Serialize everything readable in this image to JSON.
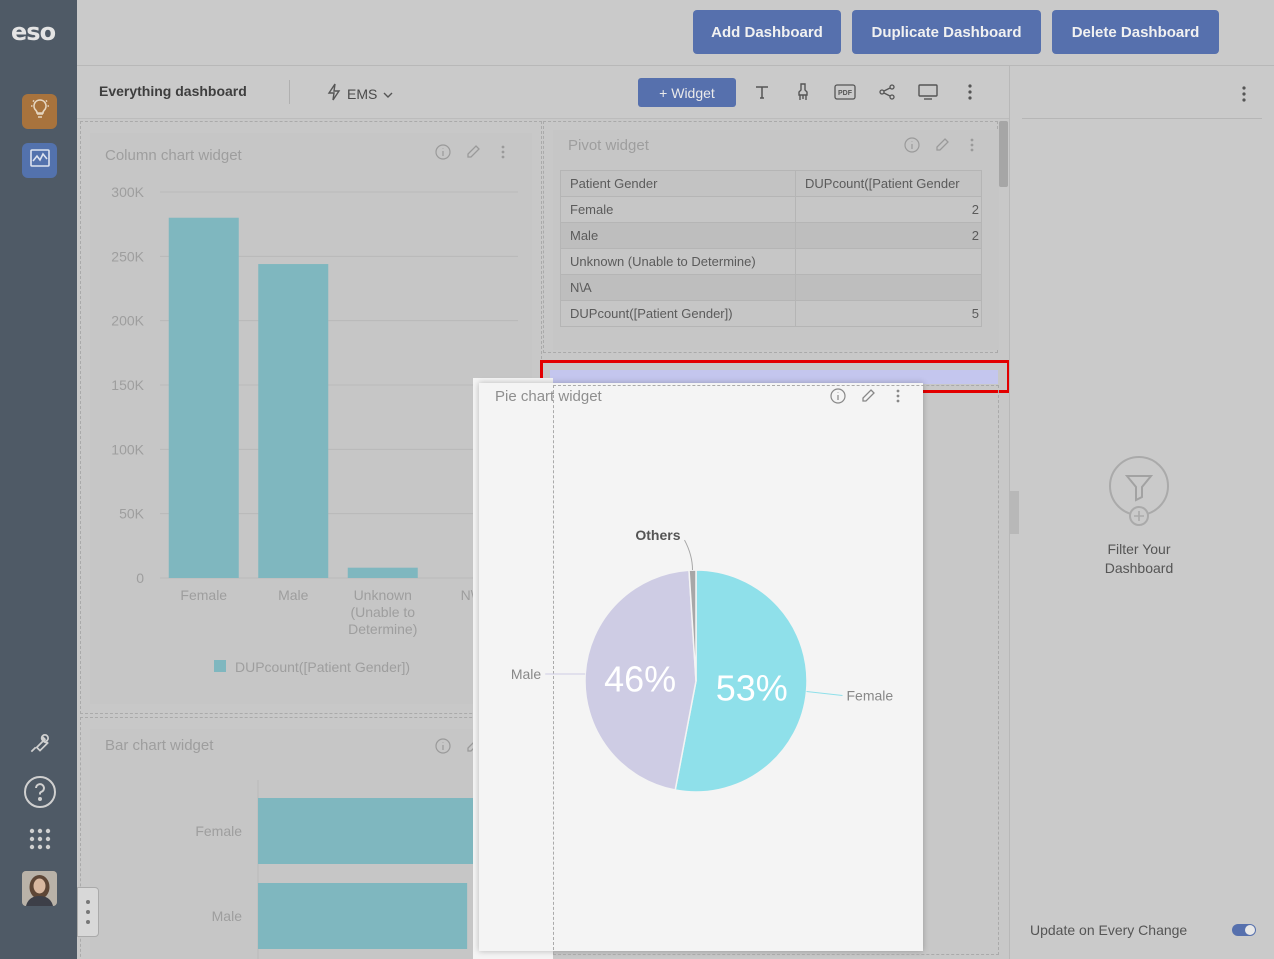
{
  "header": {
    "logo": "eso",
    "buttons": {
      "add": "Add Dashboard",
      "duplicate": "Duplicate Dashboard",
      "delete": "Delete Dashboard"
    }
  },
  "toolbar": {
    "dashboard_title": "Everything dashboard",
    "datasource": "EMS",
    "widget_button": "+ Widget",
    "icons": [
      "text-icon",
      "brush-icon",
      "pdf-icon",
      "share-icon",
      "monitor-icon",
      "more-vertical-icon"
    ]
  },
  "sidebar": {
    "apps": [
      "lightbulb-icon",
      "activity-chart-icon"
    ],
    "tools": [
      "wrench-icon",
      "help-icon",
      "apps-grid-icon"
    ]
  },
  "right_panel": {
    "filter_label": "Filter Your Dashboard",
    "update_label": "Update on Every Change",
    "update_enabled": true
  },
  "widgets": {
    "column": {
      "title": "Column chart widget",
      "legend": "DUPcount([Patient Gender])"
    },
    "pivot": {
      "title": "Pivot widget",
      "headers": [
        "Patient Gender",
        "DUPcount([Patient Gender"
      ],
      "rows": [
        {
          "label": "Female",
          "value": "2"
        },
        {
          "label": "Male",
          "value": "2"
        },
        {
          "label": "Unknown (Unable to Determine)",
          "value": ""
        },
        {
          "label": "N\\A",
          "value": ""
        },
        {
          "label": "DUPcount([Patient Gender])",
          "value": "5"
        }
      ]
    },
    "pie": {
      "title": "Pie chart widget"
    },
    "bar": {
      "title": "Bar chart widget"
    }
  },
  "chart_data": [
    {
      "type": "bar",
      "orientation": "vertical",
      "categories": [
        "Female",
        "Male",
        "Unknown (Unable to Determine)",
        "N\\A"
      ],
      "category_lines": [
        [
          "Female"
        ],
        [
          "Male"
        ],
        [
          "Unknown",
          "(Unable to",
          "Determine)"
        ],
        [
          "N\\A"
        ]
      ],
      "series": [
        {
          "name": "DUPcount([Patient Gender])",
          "values": [
            280000,
            244000,
            8000,
            0
          ]
        }
      ],
      "ylim": [
        0,
        300000
      ],
      "yticks": [
        "0",
        "50K",
        "100K",
        "150K",
        "200K",
        "250K",
        "300K"
      ],
      "color": "#7fb7bf",
      "grid": true,
      "legend": "bottom"
    },
    {
      "type": "pie",
      "labels": [
        "Female",
        "Male",
        "Others"
      ],
      "values": [
        53,
        46,
        1
      ],
      "value_labels": [
        "53%",
        "46%",
        ""
      ],
      "colors": [
        "#8fe0ea",
        "#ceccE4",
        "#a7a7a7"
      ]
    },
    {
      "type": "bar",
      "orientation": "horizontal",
      "categories": [
        "Female",
        "Male"
      ],
      "values": [
        280000,
        244000
      ],
      "xlim": [
        0,
        280000
      ],
      "color": "#7fb7bf"
    }
  ]
}
